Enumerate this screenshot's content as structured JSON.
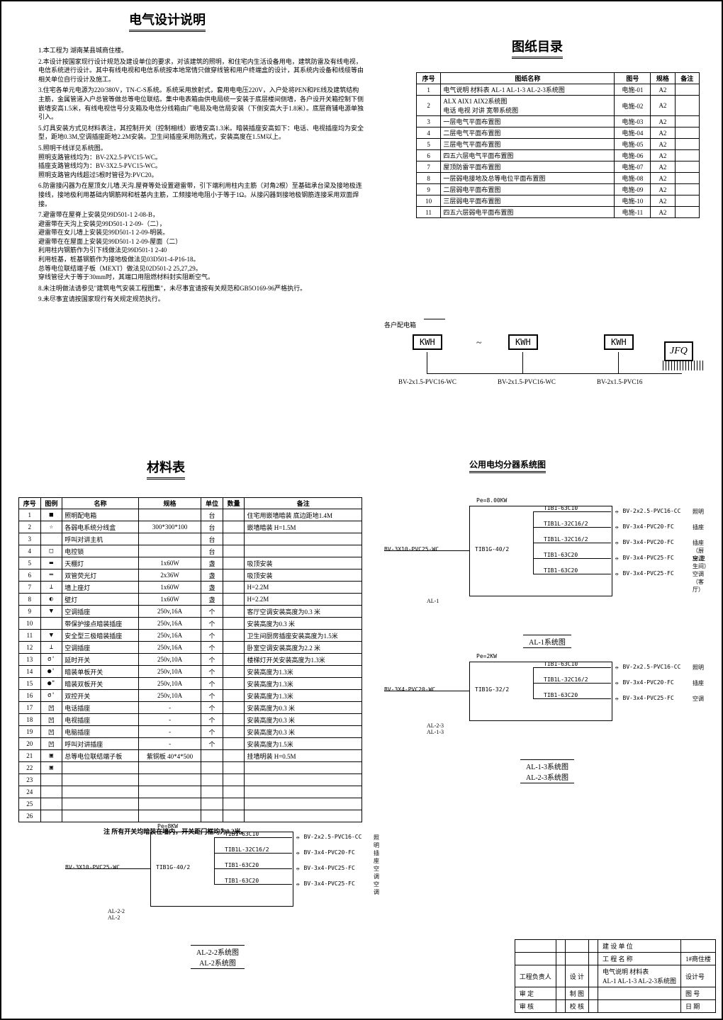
{
  "title_main": "电气设计说明",
  "title_toc": "图纸目录",
  "title_mat": "材料表",
  "title_pub": "公用电均分器系统图",
  "notes": [
    "1.本工程为 湖南某县城商住楼。",
    "2.本设计按国家现行设计规范及建设单位的要求，对该建筑的照明，和住宅内生活设备用电，建筑防雷及有线电视，电信系统进行设计。其中有线电视和电信系统按本地常情只做穿线管和用户终端盒的设计，其系统内设备和线缆等由相关单位自行设计及施工。",
    "3.住宅各单元电源为220/380V，TN-C-S系统。系统采用放射式，套用电电压220V，入户处将PEN和PE线及建筑结构主筋，金属管道入户总管等做总等电位联结。集中电表箱由供电局统一安装于底层楼间侧墙，各户设开关箱控制下侧嵌墙安高1.5米，有线电视信号分支箱及电信分线箱由广电局及电信局安装（下侧安高大于1.8米）。底层商铺电源单独引入。",
    "5.灯具安装方式见材料表注，其控制开关（控制相线）嵌墙安高1.3米。暗装插座安高如下：电话、电视插座均为安全型，距地0.3M,空调插座距地2.2M安装。卫生间插座采用防溅式，安装高度在1.5M以上。",
    "5.照明干线详见系统图。\n照明支路管线均为：BV-2X2.5-PVC15-WC。\n插座支路管线均为：BV-3X2.5-PVC15-WC。\n照明支路管内线超过5根时管径为:PVC20。",
    "6.防雷接闪器为在屋顶女儿墙.天沟.屋脊等处设置避雷带，引下端利用柱内主筋（对角2根）至基础承台梁及接地极连接线，接地极利用基础内钢筋网和桩基内主筋，工频接地电阻小于等于1Ω。从接闪器到接地极钢筋连接采用双面焊接。",
    "7.避雷带在屋脊上安装见99D501-1 2-08-B，\n避雷带在天沟上安装见99D501-1 2-09-（二），\n避雷带在女儿墙上安装见99D501-1 2-09-明装。\n避雷带在在屋面上安装见99D501-1 2-09-屋面（二）\n利用柱内钢筋作为引下线做法见99D501-1 2-40\n利用桩基，桩基钢筋作为接地极做法见03D501-4-P16-18。\n总等电位联结端子板（MEXT）做法见02D501-2 25,27,29。\n穿线管径大于等于30mm时，其端口用阻燃材料封实阻断空气。",
    "8.未注明做法请参见\"建筑电气安装工程图集\"，未尽事宜请按有关规范和GB5O169-96严格执行。",
    "9.未尽事宜请按国家现行有关规定规范执行。"
  ],
  "toc": {
    "head": [
      "序号",
      "图纸名称",
      "图号",
      "规格",
      "备注"
    ],
    "rows": [
      [
        "1",
        "电气说明 材料表 AL-1 AL-1-3 AL-2-3系统图",
        "电施-01",
        "A2",
        ""
      ],
      [
        "2",
        "ALX AIX1 AIX2系统图\n电话 电视 对讲 宽带系统图",
        "电施-02",
        "A2",
        ""
      ],
      [
        "3",
        "一层电气平面布置图",
        "电施-03",
        "A2",
        ""
      ],
      [
        "4",
        "二层电气平面布置图",
        "电施-04",
        "A2",
        ""
      ],
      [
        "5",
        "三层电气平面布置图",
        "电施-05",
        "A2",
        ""
      ],
      [
        "6",
        "四五六层电气平面布置图",
        "电施-06",
        "A2",
        ""
      ],
      [
        "7",
        "屋顶防雷平面布置图",
        "电施-07",
        "A2",
        ""
      ],
      [
        "8",
        "一层弱电接地及总等电位平面布置图",
        "电施-08",
        "A2",
        ""
      ],
      [
        "9",
        "二层弱电平面布置图",
        "电施-09",
        "A2",
        ""
      ],
      [
        "10",
        "三层弱电平面布置图",
        "电施-10",
        "A2",
        ""
      ],
      [
        "11",
        "四五六层弱电平面布置图",
        "电施-11",
        "A2",
        ""
      ]
    ]
  },
  "kwh_label": "各户配电箱",
  "kwh": "KWH",
  "jfq": "JFQ",
  "cable": "BV-2x1.5-PVC16-WC",
  "mat": {
    "head": [
      "序号",
      "图例",
      "名称",
      "规格",
      "单位",
      "数量",
      "备注"
    ],
    "rows": [
      [
        "1",
        "■",
        "照明配电箱",
        "",
        "台",
        "",
        "住宅用嵌墙暗装 底边距地1.4M"
      ],
      [
        "2",
        "☆",
        "各弱电系统分线盒",
        "300*300*100",
        "台",
        "",
        "嵌墙暗装 H=1.5M"
      ],
      [
        "3",
        "",
        "呼叫对讲主机",
        "",
        "台",
        "",
        ""
      ],
      [
        "4",
        "□",
        "电控锁",
        "",
        "台",
        "",
        ""
      ],
      [
        "5",
        "▬",
        "天棚灯",
        "1x60W",
        "盏",
        "",
        "吸顶安装"
      ],
      [
        "6",
        "═",
        "双管荧光灯",
        "2x36W",
        "盏",
        "",
        "吸顶安装"
      ],
      [
        "7",
        "⊥",
        "墙上座灯",
        "1x60W",
        "盏",
        "",
        "H=2.2M"
      ],
      [
        "8",
        "◐",
        "壁灯",
        "1x60W",
        "盏",
        "",
        "H=2.2M"
      ],
      [
        "9",
        "▼",
        "空调插座",
        "250v,16A",
        "个",
        "",
        "客厅空调安装高度为0.3 米"
      ],
      [
        "10",
        "",
        "带保护接点暗装插座",
        "250v,16A",
        "个",
        "",
        "安装高度为0.3 米"
      ],
      [
        "11",
        "▼",
        "安全型三极暗装插座",
        "250v,16A",
        "个",
        "",
        "卫生间厨房插座安装高度为1.5米"
      ],
      [
        "12",
        "⊥",
        "空调插座",
        "250v,16A",
        "个",
        "",
        "卧室空调安装高度为2.2 米"
      ],
      [
        "13",
        "σ'",
        "延时开关",
        "250v,10A",
        "个",
        "",
        "楼梯灯开关安装高度为1.3米"
      ],
      [
        "14",
        "●'",
        "暗装单板开关",
        "250v,10A",
        "个",
        "",
        "安装高度为1.3米"
      ],
      [
        "15",
        "●\"",
        "暗装双板开关",
        "250v,10A",
        "个",
        "",
        "安装高度为1.3米"
      ],
      [
        "16",
        "σ'",
        "双控开关",
        "250v,10A",
        "个",
        "",
        "安装高度为1.3米"
      ],
      [
        "17",
        "凹",
        "电话插座",
        "-",
        "个",
        "",
        "安装高度为0.3 米"
      ],
      [
        "18",
        "凹",
        "电视插座",
        "-",
        "个",
        "",
        "安装高度为0.3 米"
      ],
      [
        "19",
        "凹",
        "电脑插座",
        "-",
        "个",
        "",
        "安装高度为0.3 米"
      ],
      [
        "20",
        "凹",
        "呼叫对讲插座",
        "-",
        "个",
        "",
        "安装高度为1.5米"
      ],
      [
        "21",
        "▣",
        "总等电位联结端子板",
        "紫铜板 40*4*500",
        "",
        "",
        "挂墙明装    H=0.5M"
      ],
      [
        "22",
        "▣",
        "",
        "",
        "",
        "",
        ""
      ],
      [
        "23",
        "",
        "",
        "",
        "",
        "",
        ""
      ],
      [
        "24",
        "",
        "",
        "",
        "",
        "",
        ""
      ],
      [
        "25",
        "",
        "",
        "",
        "",
        "",
        ""
      ],
      [
        "26",
        "",
        "",
        "",
        "",
        "",
        ""
      ]
    ],
    "note": "注 所有开关均暗装在墙内，开关距门框均为0.2米。"
  },
  "al1": {
    "pe": "Pe=8.00KW",
    "in": "BV-3X10-PVC25-WC",
    "main": "TIB1G-40/2",
    "lines": [
      {
        "b": "TIB1-63C10",
        "c": "BV-2x2.5-PVC16-CC",
        "u": "照明"
      },
      {
        "b": "TIB1L-32C16/2",
        "c": "BV-3x4-PVC20-FC",
        "u": "插座"
      },
      {
        "b": "TIB1L-32C16/2",
        "c": "BV-3x4-PVC20-FC",
        "u": "插座（厨房,卫生间）"
      },
      {
        "b": "TIB1-63C20",
        "c": "BV-3x4-PVC25-FC",
        "u": "空调"
      },
      {
        "b": "TIB1-63C20",
        "c": "BV-3x4-PVC25-FC",
        "u": "空调（客厅）"
      }
    ],
    "lbl": "AL-1",
    "title": "AL-1系统图"
  },
  "al13": {
    "pe": "Pe=2KW",
    "in": "BV-3X4-PVC20-WC",
    "main": "TIB1G-32/2",
    "lines": [
      {
        "b": "TIB1-63C10",
        "c": "BV-2x2.5-PVC16-CC",
        "u": "照明"
      },
      {
        "b": "TIB1L-32C16/2",
        "c": "BV-3x4-PVC20-FC",
        "u": "插座"
      },
      {
        "b": "TIB1-63C20",
        "c": "BV-3x4-PVC25-FC",
        "u": "空调"
      }
    ],
    "lbl": "AL-2-3\nAL-1-3",
    "title": "AL-1-3系统图\nAL-2-3系统图"
  },
  "al22": {
    "pe": "Pe=8KW",
    "in": "BV-3X10-PVC25-WC",
    "main": "TIB1G-40/2",
    "lines": [
      {
        "b": "TIB1-63C10",
        "c": "BV-2x2.5-PVC16-CC",
        "u": "照明"
      },
      {
        "b": "TIB1L-32C16/2",
        "c": "BV-3x4-PVC20-FC",
        "u": "插座"
      },
      {
        "b": "TIB1-63C20",
        "c": "BV-3x4-PVC25-FC",
        "u": "空调"
      },
      {
        "b": "TIB1-63C20",
        "c": "BV-3x4-PVC25-FC",
        "u": "空调"
      }
    ],
    "lbl": "AL-2-2\nAL-2",
    "title": "AL-2-2系统图\nAL-2系统图"
  },
  "titleblock": {
    "r": [
      [
        "",
        "",
        "",
        "",
        "建 设 单 位",
        ""
      ],
      [
        "",
        "",
        "",
        "",
        "工 程 名 称",
        "1#商住楼"
      ],
      [
        "工程负责人",
        "",
        "设 计",
        "",
        "电气说明 材料表\nAL-1 AL-1-3 AL-2-3系统图",
        "设计号"
      ],
      [
        "审 定",
        "",
        "制 图",
        "",
        "",
        "图 号"
      ],
      [
        "审 核",
        "",
        "校 核",
        "",
        "",
        "日 期"
      ]
    ]
  }
}
